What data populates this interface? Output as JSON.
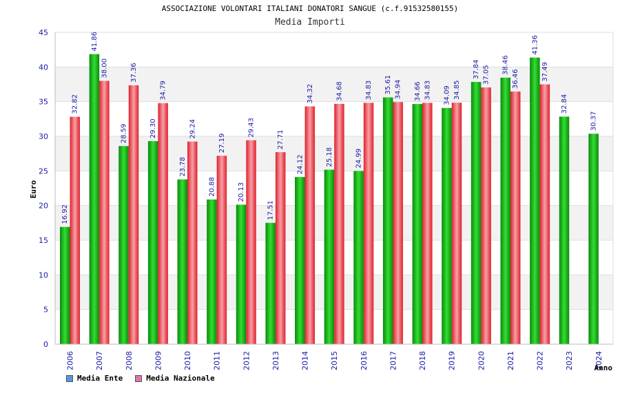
{
  "chart_data": {
    "type": "bar",
    "title": "ASSOCIAZIONE VOLONTARI ITALIANI DONATORI SANGUE (c.f.91532580155)",
    "subtitle": "Media Importi",
    "xlabel": "Anno",
    "ylabel": "Euro",
    "ylim": [
      0,
      45
    ],
    "yticks": [
      0,
      5,
      10,
      15,
      20,
      25,
      30,
      35,
      40,
      45
    ],
    "grid": true,
    "legend_position": "bottom-left",
    "categories": [
      "2006",
      "2007",
      "2008",
      "2009",
      "2010",
      "2011",
      "2012",
      "2013",
      "2014",
      "2015",
      "2016",
      "2017",
      "2018",
      "2019",
      "2020",
      "2021",
      "2022",
      "2023",
      "2024"
    ],
    "series": [
      {
        "name": "Media Ente",
        "color": "#22bb22",
        "legend_color": "#5599dd",
        "values": [
          16.92,
          41.86,
          28.59,
          29.3,
          23.78,
          20.88,
          20.13,
          17.51,
          24.12,
          25.18,
          24.99,
          35.61,
          34.66,
          34.09,
          37.84,
          38.46,
          41.36,
          32.84,
          30.37
        ],
        "labels": [
          "16.92",
          "41.86",
          "28.59",
          "29.30",
          "23.78",
          "20.88",
          "20.13",
          "17.51",
          "24.12",
          "25.18",
          "24.99",
          "35.61",
          "34.66",
          "34.09",
          "37.84",
          "38.46",
          "41.36",
          "32.84",
          "30.37"
        ]
      },
      {
        "name": "Media Nazionale",
        "color": "#ee3344",
        "legend_color": "#dd77aa",
        "values": [
          32.82,
          38.0,
          37.36,
          34.79,
          29.24,
          27.19,
          29.43,
          27.71,
          34.32,
          34.68,
          34.83,
          34.94,
          34.83,
          34.85,
          37.05,
          36.46,
          37.49,
          null,
          null
        ],
        "labels": [
          "32.82",
          "38.00",
          "37.36",
          "34.79",
          "29.24",
          "27.19",
          "29.43",
          "27.71",
          "34.32",
          "34.68",
          "34.83",
          "34.94",
          "34.83",
          "34.85",
          "37.05",
          "36.46",
          "37.49",
          "",
          ""
        ]
      }
    ]
  }
}
